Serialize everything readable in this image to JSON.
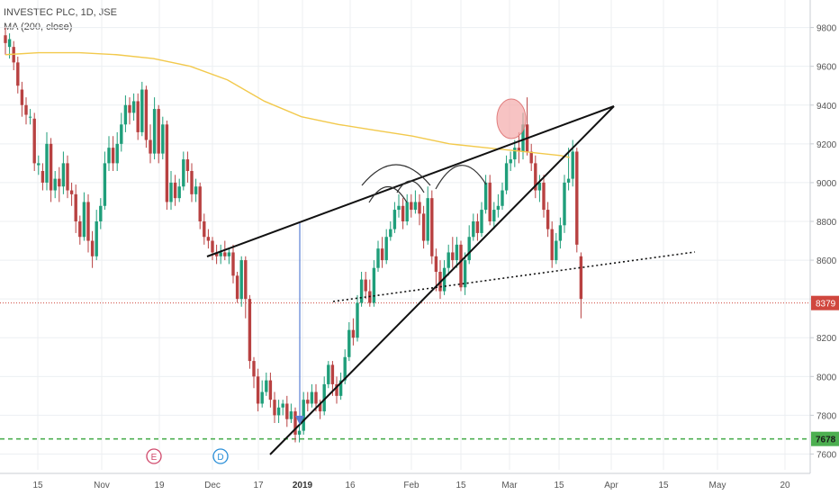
{
  "header": {
    "symbol_line": "INVESTEC PLC, 1D, JSE",
    "indicator_line": "MA (200, close)"
  },
  "colors": {
    "up": "#1f9e7a",
    "down": "#b84141",
    "ma": "#f2c94c",
    "trendline": "#111111",
    "price_line": "#d0473e",
    "support_line": "#4caf50",
    "measure_arrow": "#5b7fd6",
    "event_e": "#d04a6c",
    "event_d": "#2a8fd8",
    "grid": "#eceff2",
    "highlight": "#f3a9a9"
  },
  "chart_data": {
    "type": "candlestick",
    "title": "INVESTEC PLC, 1D, JSE",
    "y_axis": {
      "ticks": [
        7600,
        7800,
        8000,
        8200,
        8400,
        8600,
        8800,
        9000,
        9200,
        9400,
        9600,
        9800
      ]
    },
    "x_axis": {
      "ticks": [
        {
          "label": "15",
          "bold": false
        },
        {
          "label": "Nov",
          "bold": false
        },
        {
          "label": "19",
          "bold": false
        },
        {
          "label": "Dec",
          "bold": false
        },
        {
          "label": "17",
          "bold": false
        },
        {
          "label": "2019",
          "bold": true
        },
        {
          "label": "16",
          "bold": false
        },
        {
          "label": "Feb",
          "bold": false
        },
        {
          "label": "15",
          "bold": false
        },
        {
          "label": "Mar",
          "bold": false
        },
        {
          "label": "15",
          "bold": false
        },
        {
          "label": "Apr",
          "bold": false
        },
        {
          "label": "15",
          "bold": false
        },
        {
          "label": "May",
          "bold": false
        },
        {
          "label": "20",
          "bold": false
        }
      ]
    },
    "price_labels": {
      "last": "8379",
      "support": "7678"
    },
    "events": [
      "E",
      "D"
    ],
    "candles": [
      [
        9760,
        9720,
        9800,
        9660
      ],
      [
        9700,
        9740,
        9770,
        9640
      ],
      [
        9700,
        9620,
        9730,
        9580
      ],
      [
        9620,
        9500,
        9650,
        9460
      ],
      [
        9480,
        9400,
        9520,
        9340
      ],
      [
        9400,
        9350,
        9440,
        9300
      ],
      [
        9340,
        9340,
        9380,
        9300
      ],
      [
        9330,
        9100,
        9360,
        9060
      ],
      [
        9090,
        9100,
        9140,
        9040
      ],
      [
        9060,
        9000,
        9100,
        8960
      ],
      [
        9000,
        9200,
        9260,
        8960
      ],
      [
        9200,
        8960,
        9230,
        8900
      ],
      [
        8960,
        9020,
        9060,
        8920
      ],
      [
        9020,
        8980,
        9080,
        8900
      ],
      [
        8980,
        9100,
        9160,
        8940
      ],
      [
        9100,
        8960,
        9140,
        8920
      ],
      [
        8960,
        8940,
        9000,
        8880
      ],
      [
        8940,
        8800,
        8990,
        8740
      ],
      [
        8800,
        8720,
        8830,
        8680
      ],
      [
        8720,
        8900,
        8950,
        8700
      ],
      [
        8900,
        8700,
        8940,
        8640
      ],
      [
        8700,
        8620,
        8750,
        8560
      ],
      [
        8620,
        8800,
        8860,
        8600
      ],
      [
        8800,
        8880,
        8920,
        8760
      ],
      [
        8880,
        9100,
        9160,
        8860
      ],
      [
        9100,
        9180,
        9240,
        9060
      ],
      [
        9180,
        9100,
        9240,
        9060
      ],
      [
        9100,
        9200,
        9260,
        9060
      ],
      [
        9200,
        9300,
        9360,
        9160
      ],
      [
        9300,
        9400,
        9450,
        9260
      ],
      [
        9400,
        9360,
        9440,
        9300
      ],
      [
        9360,
        9420,
        9460,
        9320
      ],
      [
        9420,
        9260,
        9460,
        9220
      ],
      [
        9260,
        9480,
        9520,
        9240
      ],
      [
        9480,
        9220,
        9500,
        9180
      ],
      [
        9220,
        9150,
        9300,
        9100
      ],
      [
        9150,
        9380,
        9440,
        9120
      ],
      [
        9380,
        9150,
        9400,
        9100
      ],
      [
        9150,
        9300,
        9340,
        9120
      ],
      [
        9300,
        8900,
        9320,
        8860
      ],
      [
        8900,
        9000,
        9060,
        8860
      ],
      [
        9000,
        8920,
        9040,
        8880
      ],
      [
        8920,
        8980,
        9020,
        8900
      ],
      [
        8980,
        9120,
        9160,
        8960
      ],
      [
        9120,
        9060,
        9160,
        9000
      ],
      [
        9060,
        8940,
        9100,
        8900
      ],
      [
        8940,
        8980,
        9020,
        8900
      ],
      [
        8980,
        8800,
        9000,
        8760
      ],
      [
        8800,
        8720,
        8840,
        8680
      ],
      [
        8720,
        8700,
        8760,
        8660
      ],
      [
        8700,
        8640,
        8720,
        8600
      ],
      [
        8640,
        8620,
        8680,
        8580
      ],
      [
        8620,
        8640,
        8680,
        8580
      ],
      [
        8640,
        8620,
        8700,
        8600
      ],
      [
        8620,
        8640,
        8660,
        8580
      ],
      [
        8640,
        8520,
        8680,
        8480
      ],
      [
        8520,
        8400,
        8540,
        8380
      ],
      [
        8400,
        8600,
        8620,
        8360
      ],
      [
        8600,
        8400,
        8620,
        8300
      ],
      [
        8400,
        8080,
        8420,
        8040
      ],
      [
        8080,
        8000,
        8100,
        7940
      ],
      [
        8000,
        7860,
        8040,
        7820
      ],
      [
        7860,
        7920,
        7980,
        7840
      ],
      [
        7920,
        7980,
        8020,
        7900
      ],
      [
        7980,
        7880,
        8020,
        7840
      ],
      [
        7880,
        7800,
        7920,
        7760
      ],
      [
        7800,
        7840,
        7880,
        7760
      ],
      [
        7840,
        7860,
        7880,
        7800
      ],
      [
        7860,
        7780,
        7900,
        7740
      ],
      [
        7780,
        7820,
        7860,
        7760
      ],
      [
        7820,
        7700,
        7840,
        7660
      ],
      [
        7700,
        7720,
        7760,
        7660
      ],
      [
        7720,
        7880,
        7920,
        7700
      ],
      [
        7880,
        7860,
        7920,
        7820
      ],
      [
        7860,
        7920,
        7960,
        7840
      ],
      [
        7920,
        7860,
        7960,
        7820
      ],
      [
        7860,
        7820,
        7880,
        7780
      ],
      [
        7820,
        7960,
        8000,
        7800
      ],
      [
        7960,
        8060,
        8080,
        7940
      ],
      [
        8060,
        7960,
        8080,
        7900
      ],
      [
        7960,
        7900,
        8000,
        7860
      ],
      [
        7900,
        7980,
        8020,
        7880
      ],
      [
        7980,
        8100,
        8140,
        7960
      ],
      [
        8100,
        8240,
        8280,
        8080
      ],
      [
        8240,
        8200,
        8300,
        8160
      ],
      [
        8200,
        8380,
        8420,
        8180
      ],
      [
        8380,
        8500,
        8540,
        8360
      ],
      [
        8500,
        8440,
        8540,
        8400
      ],
      [
        8440,
        8380,
        8500,
        8360
      ],
      [
        8380,
        8560,
        8600,
        8360
      ],
      [
        8560,
        8660,
        8700,
        8540
      ],
      [
        8660,
        8600,
        8720,
        8560
      ],
      [
        8600,
        8720,
        8760,
        8580
      ],
      [
        8720,
        8760,
        8800,
        8700
      ],
      [
        8760,
        8860,
        8900,
        8740
      ],
      [
        8860,
        8880,
        8940,
        8820
      ],
      [
        8880,
        8800,
        8920,
        8760
      ],
      [
        8800,
        8900,
        8940,
        8780
      ],
      [
        8900,
        8860,
        8940,
        8820
      ],
      [
        8860,
        8900,
        8960,
        8840
      ],
      [
        8900,
        8840,
        8940,
        8780
      ],
      [
        8840,
        8700,
        8880,
        8660
      ],
      [
        8700,
        8920,
        8980,
        8680
      ],
      [
        8920,
        8620,
        8960,
        8580
      ],
      [
        8620,
        8540,
        8660,
        8440
      ],
      [
        8540,
        8440,
        8600,
        8400
      ],
      [
        8440,
        8560,
        8600,
        8420
      ],
      [
        8560,
        8640,
        8680,
        8520
      ],
      [
        8640,
        8600,
        8720,
        8560
      ],
      [
        8600,
        8680,
        8720,
        8560
      ],
      [
        8680,
        8460,
        8700,
        8440
      ],
      [
        8460,
        8600,
        8640,
        8420
      ],
      [
        8600,
        8720,
        8780,
        8580
      ],
      [
        8720,
        8800,
        8840,
        8700
      ],
      [
        8800,
        8740,
        8840,
        8700
      ],
      [
        8740,
        8860,
        8900,
        8720
      ],
      [
        8860,
        9000,
        9040,
        8840
      ],
      [
        9000,
        8800,
        9040,
        8780
      ],
      [
        8800,
        8860,
        8900,
        8760
      ],
      [
        8860,
        8880,
        8940,
        8820
      ],
      [
        8880,
        8960,
        9000,
        8860
      ],
      [
        8960,
        9100,
        9140,
        8940
      ],
      [
        9100,
        9120,
        9160,
        9060
      ],
      [
        9120,
        9180,
        9220,
        9080
      ],
      [
        9180,
        9160,
        9260,
        9100
      ],
      [
        9160,
        9300,
        9360,
        9120
      ],
      [
        9300,
        9160,
        9440,
        9140
      ],
      [
        9160,
        9100,
        9200,
        9060
      ],
      [
        9100,
        8960,
        9140,
        8920
      ],
      [
        8960,
        9000,
        9040,
        8900
      ],
      [
        9000,
        8860,
        9040,
        8820
      ],
      [
        8860,
        8760,
        8900,
        8720
      ],
      [
        8760,
        8600,
        8800,
        8560
      ],
      [
        8600,
        8700,
        8740,
        8580
      ],
      [
        8700,
        8780,
        8820,
        8660
      ],
      [
        8780,
        9000,
        9040,
        8740
      ],
      [
        9000,
        9020,
        9180,
        8960
      ],
      [
        9020,
        9160,
        9220,
        8980
      ],
      [
        9160,
        8680,
        9180,
        8640
      ],
      [
        8620,
        8400,
        8640,
        8300
      ]
    ],
    "moving_average_200": [
      [
        0,
        9660
      ],
      [
        18,
        9670
      ],
      [
        40,
        9670
      ],
      [
        60,
        9660
      ],
      [
        80,
        9640
      ],
      [
        100,
        9600
      ],
      [
        120,
        9530
      ],
      [
        140,
        9420
      ],
      [
        160,
        9340
      ],
      [
        180,
        9300
      ],
      [
        200,
        9270
      ],
      [
        220,
        9240
      ],
      [
        240,
        9200
      ],
      [
        260,
        9180
      ],
      [
        280,
        9160
      ],
      [
        300,
        9140
      ],
      [
        305,
        9130
      ]
    ]
  }
}
